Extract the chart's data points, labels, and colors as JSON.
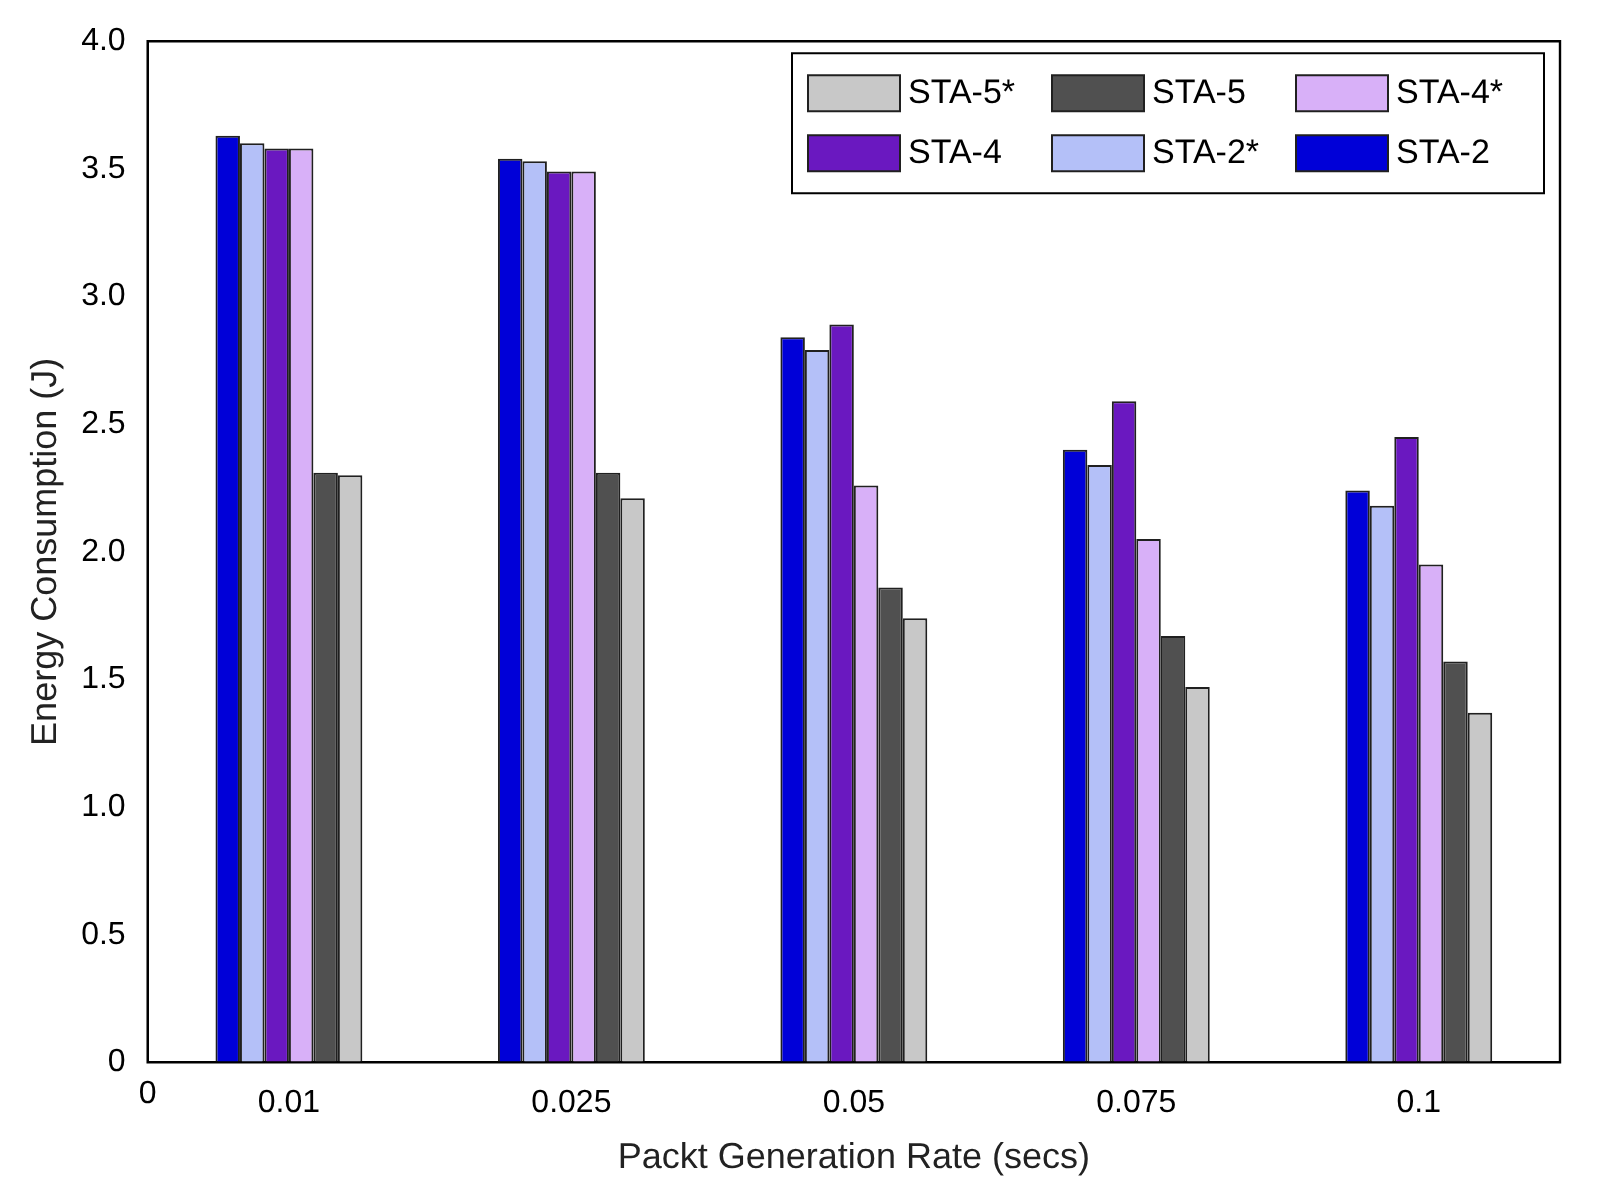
{
  "chart_data": {
    "type": "bar",
    "xlabel": "Packt Generation Rate (secs)",
    "ylabel": "Energy Consumption (J)",
    "categories": [
      "0.01",
      "0.025",
      "0.05",
      "0.075",
      "0.1"
    ],
    "annotations": [
      "0"
    ],
    "ylim": [
      0,
      4
    ],
    "yticks": [
      0,
      0.5,
      {
        "value": 1,
        "label": "1.0"
      },
      1.5,
      {
        "value": 2,
        "label": "2.0"
      },
      2.5,
      {
        "value": 3,
        "label": "3.0"
      },
      3.5,
      {
        "value": 4,
        "label": "4.0"
      }
    ],
    "grid": false,
    "legend": "top right",
    "series": [
      {
        "name": "STA-2",
        "color": "#0000d8",
        "values": [
          3.63,
          3.54,
          2.84,
          2.4,
          2.24
        ]
      },
      {
        "name": "STA-2*",
        "color": "#b4c0f8",
        "values": [
          3.6,
          3.53,
          2.79,
          2.34,
          2.18
        ]
      },
      {
        "name": "STA-4",
        "color": "#6a18c0",
        "values": [
          3.58,
          3.49,
          2.89,
          2.59,
          2.45
        ]
      },
      {
        "name": "STA-4*",
        "color": "#d8b0f8",
        "values": [
          3.58,
          3.49,
          2.26,
          2.05,
          1.95
        ]
      },
      {
        "name": "STA-5",
        "color": "#505050",
        "values": [
          2.31,
          2.31,
          1.86,
          1.67,
          1.57
        ]
      },
      {
        "name": "STA-5*",
        "color": "#c8c8c8",
        "values": [
          2.3,
          2.21,
          1.74,
          1.47,
          1.37
        ]
      }
    ]
  }
}
